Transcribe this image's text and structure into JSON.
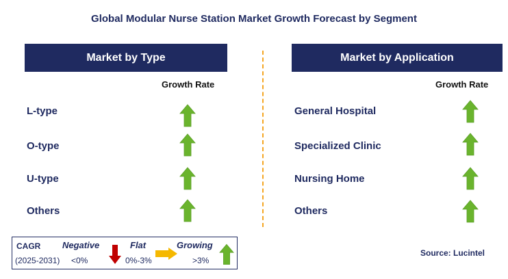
{
  "title": "Global Modular Nurse Station Market Growth Forecast by Segment",
  "left_panel": {
    "header": "Market by Type",
    "column_header": "Growth Rate",
    "rows": [
      {
        "label": "L-type",
        "trend": "growing"
      },
      {
        "label": "O-type",
        "trend": "growing"
      },
      {
        "label": "U-type",
        "trend": "growing"
      },
      {
        "label": "Others",
        "trend": "growing"
      }
    ]
  },
  "right_panel": {
    "header": "Market by Application",
    "column_header": "Growth Rate",
    "rows": [
      {
        "label": "General Hospital",
        "trend": "growing"
      },
      {
        "label": "Specialized Clinic",
        "trend": "growing"
      },
      {
        "label": "Nursing Home",
        "trend": "growing"
      },
      {
        "label": "Others",
        "trend": "growing"
      }
    ]
  },
  "legend": {
    "cagr_label": "CAGR",
    "period": "(2025-2031)",
    "negative": {
      "label": "Negative",
      "range": "<0%",
      "icon": "down-arrow-icon",
      "color": "#c00000"
    },
    "flat": {
      "label": "Flat",
      "range": "0%-3%",
      "icon": "right-arrow-icon",
      "color": "#f5b800"
    },
    "growing": {
      "label": "Growing",
      "range": ">3%",
      "icon": "up-arrow-icon",
      "color": "#6ab42d"
    }
  },
  "source": "Source: Lucintel",
  "colors": {
    "navy": "#1f2a60",
    "divider": "#f5a623",
    "growing_arrow": "#6ab42d"
  }
}
